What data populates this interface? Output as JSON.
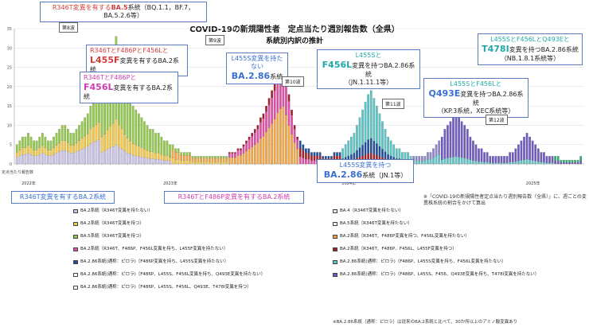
{
  "header": {
    "title": "COVID-19の新規陽性者　定点当たり週別報告数（全県）",
    "subtitle": "系統別内訳の推計"
  },
  "y_axis_label": "定点当たり報告数",
  "wave_labels": [
    "第8波",
    "第9波",
    "第10波",
    "第11波",
    "第12波"
  ],
  "callouts": {
    "ba5": {
      "a": "R346T変異を有する",
      "b": "BA.5",
      "c": "系統（BQ.1.1，BF.7，BA.5.2.6等）"
    },
    "l455f": {
      "a": "R346TとF486PとF456Lと",
      "b": "L455F",
      "c": "変異を有するBA.2系統"
    },
    "f456l": {
      "a": "R346TとF486Pと",
      "b": "F456L",
      "c": "変異を有するBA.2系統"
    },
    "ba286": {
      "a": "L455S変異を持たない",
      "b": "BA.2.86",
      "c": "系統"
    },
    "jn111": {
      "a": "L455Sと",
      "b": "F456L",
      "c": "変異を持つBA.2.86系統",
      "d": "（JN.1.11.1等）"
    },
    "kp3": {
      "a": "L455SとF456Lと",
      "b": "Q493E",
      "c": "変異を持つBA.2.86系統",
      "d": "（KP.3系統，XEC系統等）"
    },
    "nb": {
      "a": "L455SとF456LとQ493Eと",
      "b": "T478I",
      "c": "変異を持つBA.2.86系統",
      "d": "（NB.1.8.1系統等）"
    },
    "jn1": {
      "a": "L455S変異を持つ",
      "b": "BA.2.86",
      "c": "系統（JN.1等）"
    },
    "r346t_ba2": "R346T変異を有するBA.2系統",
    "f486p_ba2": "R346TとF486P変異を有するBA.2系統"
  },
  "note": "※「COVID-19の新規陽性者定点当たり週別報告数（全県）」に、週ごとの変異株系統の割合をかけて算出",
  "footnote": "※BA.2.86系統（通称：ピロラ）は従来のBA.2系統と比べて、30か所以上のアミノ酸変異あり",
  "legend": [
    {
      "text": "BA.2系統（R346T変異を持たない）",
      "color": "#c9c2e6"
    },
    {
      "text": "BA.4（R346T変異を持たない）",
      "color": "#e8e8e8"
    },
    {
      "text": "BA.2系統（R346T変異を持つ）",
      "color": "#f4c842"
    },
    {
      "text": "BA.5系統（R346T変異を持たない）",
      "color": "#eeeeee"
    },
    {
      "text": "BA.5系統（R346T変異を持つ）",
      "color": "#93c94b"
    },
    {
      "text": "BA.2系統（R346T、F486P変異を持つ、F456L変異を持たない）",
      "color": "#f2a541"
    },
    {
      "text": "BA.2系統（R346T、F486P、F456L変異を持ち、L455F変異を持たない）",
      "color": "#e04ea6"
    },
    {
      "text": "BA.2系統（R346T、F486P、F456L、L455F変異を持つ）",
      "color": "#a31f2a"
    },
    {
      "text": "BA.2.86系統(通称：ピロラ)（F486P変異を持ち、L455S変異を持たない）",
      "color": "#1f4e9c"
    },
    {
      "text": "BA.2.86系統(通称：ピロラ)（F486P、L455S変異を持ち、F456L変異を持たない）",
      "color": "#5bc4c4"
    },
    {
      "text": "BA.2.86系統(通称：ピロラ)（F486P、L455S、F456L変異を持ち、Q493E変異を持たない）",
      "color": "#ffffff"
    },
    {
      "text": "BA.2.86系統(通称：ピロラ)（F486P、L455S、F456、Q493E変異を持ち、T478I変異を持たない）",
      "color": "#6f5bbf"
    },
    {
      "text": "BA.2.86系統(通称：ピロラ)（F486P、L455S、F456L、Q493E、T478I変異を持つ）",
      "color": "#ffffff"
    }
  ],
  "chart_data": {
    "type": "bar",
    "stacked": true,
    "ylim": [
      0,
      35
    ],
    "yticks": [
      0,
      5,
      10,
      15,
      20,
      25,
      30,
      35
    ],
    "year_labels": [
      "2022年",
      "2023年",
      "2024年",
      "2025年"
    ],
    "totals": [
      5,
      6,
      7,
      7,
      8,
      7,
      6,
      6,
      7,
      8,
      7,
      6,
      6,
      7,
      8,
      9,
      10,
      10,
      9,
      8,
      8,
      9,
      10,
      11,
      12,
      13,
      15,
      16,
      17,
      18,
      20,
      22,
      25,
      28,
      30,
      33,
      29,
      26,
      22,
      19,
      17,
      15,
      14,
      13,
      12,
      11,
      10,
      9,
      9,
      8,
      8,
      7,
      6,
      6,
      5,
      5,
      4,
      4,
      3,
      3,
      3,
      3,
      2,
      2,
      2,
      2,
      2,
      2,
      2,
      2,
      2,
      2,
      2,
      2,
      2,
      3,
      3,
      3,
      4,
      4,
      5,
      6,
      7,
      8,
      9,
      10,
      12,
      13,
      15,
      17,
      19,
      21,
      24,
      26,
      27,
      23,
      18,
      14,
      10,
      7,
      6,
      5,
      4,
      4,
      3,
      3,
      3,
      3,
      2,
      2,
      2,
      2,
      3,
      3,
      3,
      4,
      5,
      6,
      7,
      8,
      10,
      12,
      14,
      16,
      18,
      19,
      17,
      15,
      13,
      11,
      9,
      7,
      6,
      5,
      4,
      4,
      3,
      3,
      3,
      2,
      2,
      2,
      2,
      2,
      2,
      3,
      3,
      4,
      5,
      6,
      7,
      9,
      10,
      11,
      12,
      13,
      12,
      11,
      10,
      9,
      7,
      6,
      5,
      4,
      4,
      3,
      3,
      2,
      2,
      2,
      2,
      2,
      2,
      2,
      3,
      3,
      4,
      5,
      6,
      7,
      8,
      7,
      6,
      5,
      4,
      3,
      3,
      2,
      2,
      2,
      2,
      2,
      1,
      1,
      1,
      1,
      1,
      1,
      1,
      2
    ]
  }
}
